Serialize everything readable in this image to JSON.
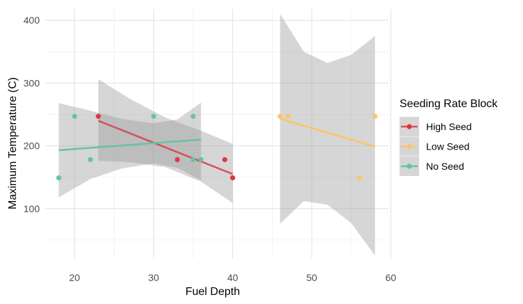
{
  "chart_data": {
    "type": "scatter",
    "title": "",
    "xlabel": "Fuel Depth",
    "ylabel": "Maximum Temperature (C)",
    "xlim": [
      16.3,
      59.7
    ],
    "ylim": [
      20,
      418
    ],
    "x_ticks": [
      20,
      30,
      40,
      50,
      60
    ],
    "y_ticks": [
      100,
      200,
      300,
      400
    ],
    "grid": true,
    "legend": {
      "title": "Seeding Rate Block",
      "position": "right"
    },
    "series": [
      {
        "name": "High Seed",
        "color": "#E0383E",
        "line_color": "#D1545B",
        "points": [
          [
            23,
            247
          ],
          [
            33,
            178
          ],
          [
            39,
            178
          ],
          [
            40,
            149
          ]
        ],
        "fit": {
          "x": [
            23,
            40
          ],
          "y": [
            240,
            155
          ]
        },
        "band": {
          "x": [
            23,
            27,
            31.5,
            36,
            40
          ],
          "upper": [
            306,
            275,
            245,
            224,
            203
          ],
          "lower": [
            176,
            174,
            166,
            143,
            109
          ]
        }
      },
      {
        "name": "Low Seed",
        "color": "#FDC46A",
        "line_color": "#FDC46A",
        "points": [
          [
            46,
            247
          ],
          [
            47,
            247
          ],
          [
            56,
            149
          ],
          [
            58,
            247
          ]
        ],
        "fit": {
          "x": [
            46,
            58
          ],
          "y": [
            243,
            199
          ]
        },
        "band": {
          "x": [
            46,
            49,
            52,
            55,
            58
          ],
          "upper": [
            410,
            350,
            332,
            345,
            375
          ],
          "lower": [
            76,
            112,
            106,
            77,
            25
          ]
        }
      },
      {
        "name": "No Seed",
        "color": "#66C2A5",
        "line_color": "#66C2A5",
        "points": [
          [
            18,
            149
          ],
          [
            20,
            247
          ],
          [
            22,
            178
          ],
          [
            30,
            247
          ],
          [
            35,
            178
          ],
          [
            35,
            247
          ],
          [
            36,
            178
          ]
        ],
        "fit": {
          "x": [
            18,
            36
          ],
          "y": [
            193,
            210
          ]
        },
        "band": {
          "x": [
            18,
            22,
            26,
            30,
            33,
            36
          ],
          "upper": [
            268,
            256,
            243,
            236,
            242,
            269
          ],
          "lower": [
            118,
            147,
            164,
            172,
            165,
            145
          ]
        }
      }
    ]
  }
}
